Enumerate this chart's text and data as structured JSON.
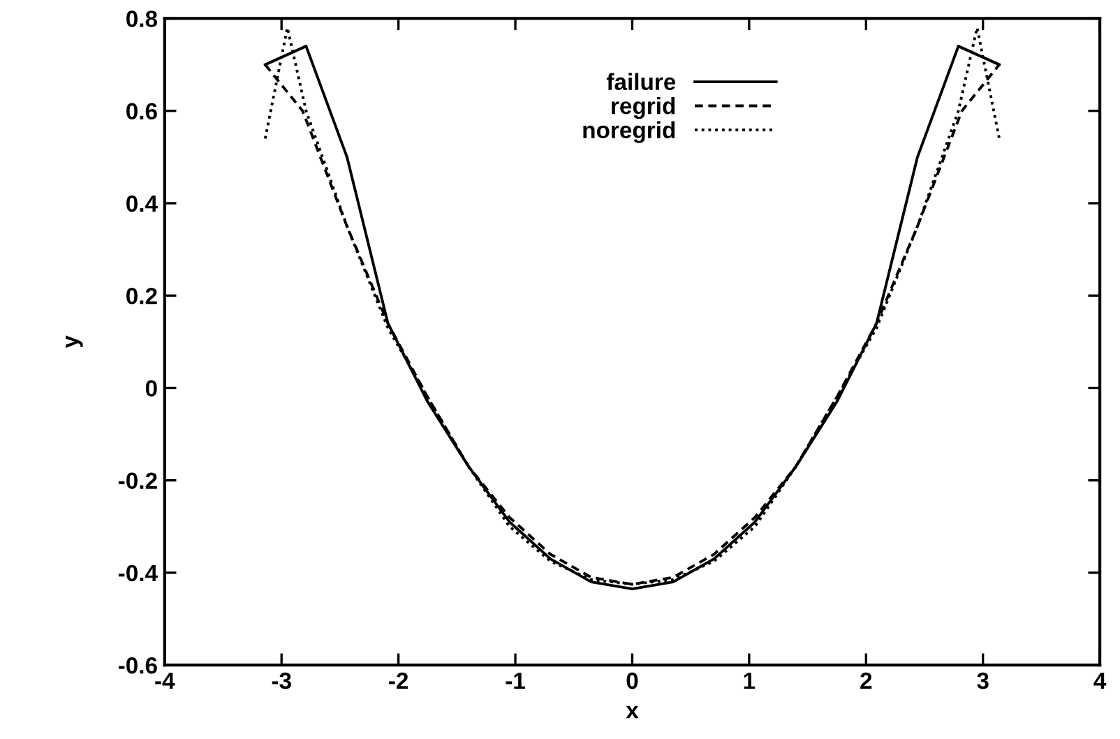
{
  "chart_data": {
    "type": "line",
    "xlabel": "x",
    "ylabel": "y",
    "xlim": [
      -4,
      4
    ],
    "ylim": [
      -0.6,
      0.8
    ],
    "xticks": [
      -4,
      -3,
      -2,
      -1,
      0,
      1,
      2,
      3,
      4
    ],
    "yticks": [
      -0.6,
      -0.4,
      -0.2,
      0,
      0.2,
      0.4,
      0.6,
      0.8
    ],
    "grid": false,
    "legend": "top",
    "series": [
      {
        "name": "failure",
        "color": "#000000",
        "line_style": "solid",
        "x": [
          -3.14,
          -2.79,
          -2.44,
          -2.09,
          -1.75,
          -1.4,
          -1.05,
          -0.7,
          -0.35,
          0,
          0.35,
          0.7,
          1.05,
          1.4,
          1.75,
          2.09,
          2.44,
          2.79,
          3.14
        ],
        "values": [
          0.7,
          0.74,
          0.5,
          0.14,
          -0.03,
          -0.17,
          -0.29,
          -0.37,
          -0.42,
          -0.435,
          -0.42,
          -0.37,
          -0.29,
          -0.17,
          -0.03,
          0.14,
          0.5,
          0.74,
          0.7
        ]
      },
      {
        "name": "regrid",
        "color": "#000000",
        "line_style": "dashed",
        "x": [
          -3.14,
          -2.82,
          -2.44,
          -2.09,
          -1.75,
          -1.4,
          -1.05,
          -0.7,
          -0.35,
          0,
          0.35,
          0.7,
          1.05,
          1.4,
          1.75,
          2.09,
          2.44,
          2.82,
          3.14
        ],
        "values": [
          0.7,
          0.6,
          0.35,
          0.14,
          -0.02,
          -0.17,
          -0.28,
          -0.36,
          -0.41,
          -0.425,
          -0.41,
          -0.36,
          -0.28,
          -0.17,
          -0.02,
          0.14,
          0.35,
          0.6,
          0.7
        ]
      },
      {
        "name": "noregrid",
        "color": "#000000",
        "line_style": "dotted",
        "x": [
          -3.14,
          -2.95,
          -2.79,
          -2.44,
          -2.09,
          -1.75,
          -1.4,
          -1.05,
          -0.7,
          -0.35,
          0,
          0.35,
          0.7,
          1.05,
          1.4,
          1.75,
          2.09,
          2.44,
          2.79,
          2.95,
          3.14
        ],
        "values": [
          0.54,
          0.78,
          0.6,
          0.35,
          0.13,
          -0.02,
          -0.17,
          -0.3,
          -0.375,
          -0.415,
          -0.425,
          -0.415,
          -0.375,
          -0.3,
          -0.17,
          -0.02,
          0.13,
          0.35,
          0.6,
          0.78,
          0.54
        ]
      }
    ]
  }
}
